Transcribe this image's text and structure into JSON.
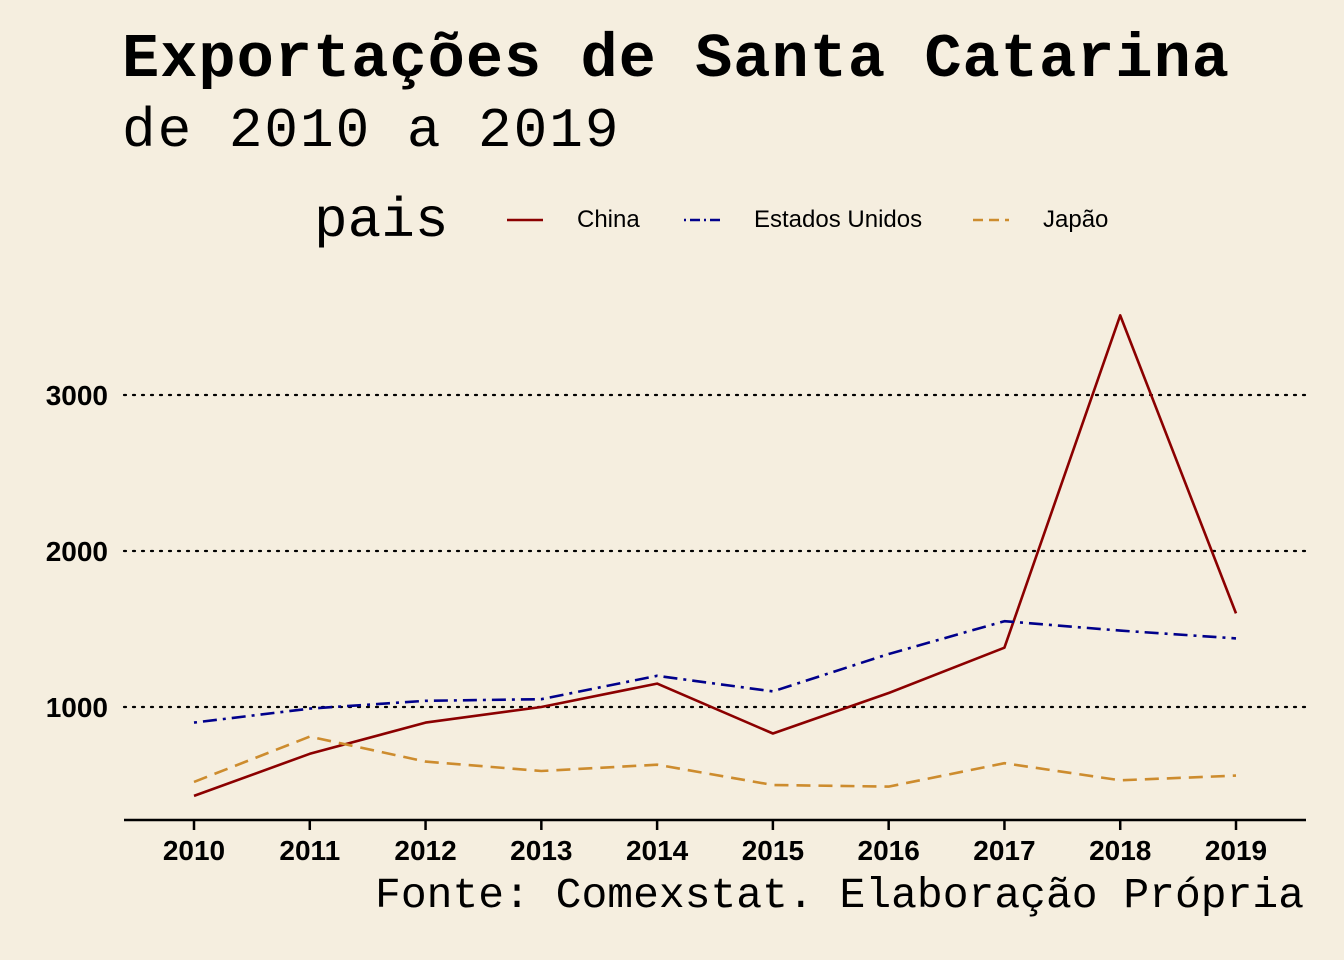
{
  "title": "Exportações de Santa Catarina",
  "subtitle": "de 2010 a 2019",
  "caption": "Fonte: Comexstat. Elaboração Própria",
  "chart_data": {
    "type": "line",
    "title": "Exportações de Santa Catarina",
    "subtitle": "de 2010 a 2019",
    "legend_title": "pais",
    "legend_position": "top",
    "x": [
      2010,
      2011,
      2012,
      2013,
      2014,
      2015,
      2016,
      2017,
      2018,
      2019
    ],
    "ylim": [
      300,
      3650
    ],
    "yticks": [
      1000,
      2000,
      3000
    ],
    "grid": "horizontal dotted",
    "series": [
      {
        "name": "China",
        "color": "#8b0000",
        "dash": "solid",
        "values": [
          430,
          700,
          900,
          1000,
          1150,
          830,
          1090,
          1380,
          3510,
          1600
        ]
      },
      {
        "name": "Estados Unidos",
        "color": "#00008b",
        "dash": "dotdash",
        "values": [
          900,
          990,
          1040,
          1050,
          1200,
          1100,
          1340,
          1550,
          1490,
          1440
        ]
      },
      {
        "name": "Japão",
        "color": "#cd8c2e",
        "dash": "dashed",
        "values": [
          520,
          810,
          650,
          590,
          630,
          500,
          490,
          640,
          530,
          560
        ]
      }
    ]
  }
}
